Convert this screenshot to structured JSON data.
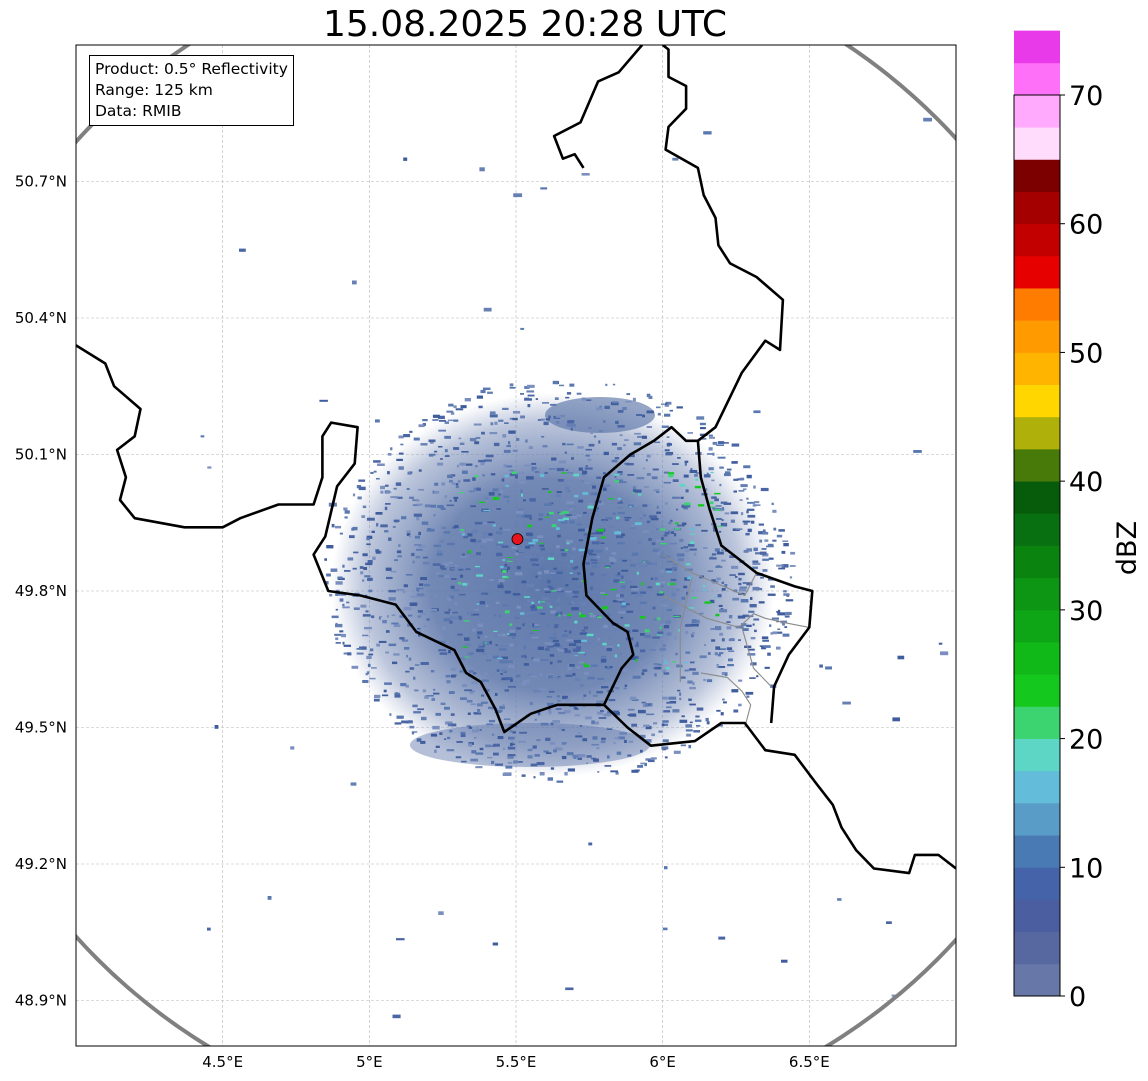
{
  "title": "15.08.2025 20:28 UTC",
  "info": {
    "product": "Product: 0.5° Reflectivity",
    "range": "Range: 125 km",
    "data": "Data: RMIB"
  },
  "map": {
    "lon_range": [
      4.0,
      7.0
    ],
    "lat_range": [
      48.8,
      51.0
    ],
    "lon_ticks": [
      {
        "value": 4.5,
        "label": "4.5°E"
      },
      {
        "value": 5.0,
        "label": "5°E"
      },
      {
        "value": 5.5,
        "label": "5.5°E"
      },
      {
        "value": 6.0,
        "label": "6°E"
      },
      {
        "value": 6.5,
        "label": "6.5°E"
      }
    ],
    "lat_ticks": [
      {
        "value": 50.7,
        "label": "50.7°N"
      },
      {
        "value": 50.4,
        "label": "50.4°N"
      },
      {
        "value": 50.1,
        "label": "50.1°N"
      },
      {
        "value": 49.8,
        "label": "49.8°N"
      },
      {
        "value": 49.5,
        "label": "49.5°N"
      },
      {
        "value": 49.2,
        "label": "49.2°N"
      },
      {
        "value": 48.9,
        "label": "48.9°N"
      }
    ],
    "gridlines": true,
    "radar_site": {
      "lon": 5.505,
      "lat": 49.914,
      "color": "#e8141c"
    },
    "range_ring_color": "#808080",
    "border_color": "#000000",
    "region_border_color": "#8a8a8a",
    "echo_base_color": "#5870a8",
    "borders": [
      [
        [
          4.0,
          50.34
        ],
        [
          4.1,
          50.3
        ],
        [
          4.13,
          50.25
        ],
        [
          4.22,
          50.2
        ],
        [
          4.2,
          50.14
        ],
        [
          4.14,
          50.11
        ],
        [
          4.17,
          50.05
        ],
        [
          4.15,
          50.0
        ],
        [
          4.2,
          49.96
        ],
        [
          4.37,
          49.94
        ],
        [
          4.5,
          49.94
        ],
        [
          4.56,
          49.96
        ],
        [
          4.69,
          49.99
        ],
        [
          4.81,
          49.99
        ],
        [
          4.84,
          50.05
        ],
        [
          4.84,
          50.14
        ],
        [
          4.87,
          50.17
        ],
        [
          4.96,
          50.16
        ],
        [
          4.95,
          50.08
        ],
        [
          4.89,
          50.03
        ],
        [
          4.85,
          49.92
        ],
        [
          4.81,
          49.88
        ],
        [
          4.86,
          49.8
        ],
        [
          4.97,
          49.79
        ],
        [
          5.09,
          49.77
        ],
        [
          5.16,
          49.71
        ],
        [
          5.29,
          49.67
        ],
        [
          5.33,
          49.62
        ],
        [
          5.38,
          49.6
        ],
        [
          5.43,
          49.54
        ],
        [
          5.46,
          49.49
        ],
        [
          5.55,
          49.53
        ],
        [
          5.64,
          49.55
        ],
        [
          5.8,
          49.55
        ],
        [
          5.88,
          49.5
        ],
        [
          5.96,
          49.46
        ],
        [
          6.11,
          49.47
        ],
        [
          6.2,
          49.51
        ],
        [
          6.28,
          49.51
        ],
        [
          6.35,
          49.45
        ],
        [
          6.45,
          49.44
        ],
        [
          6.52,
          49.38
        ],
        [
          6.58,
          49.33
        ],
        [
          6.61,
          49.28
        ],
        [
          6.66,
          49.23
        ],
        [
          6.72,
          49.19
        ],
        [
          6.84,
          49.18
        ],
        [
          6.86,
          49.22
        ],
        [
          6.94,
          49.22
        ],
        [
          7.0,
          49.19
        ]
      ],
      [
        [
          5.8,
          49.55
        ],
        [
          5.86,
          49.63
        ],
        [
          5.9,
          49.66
        ],
        [
          5.88,
          49.71
        ],
        [
          5.83,
          49.73
        ],
        [
          5.74,
          49.79
        ],
        [
          5.73,
          49.86
        ],
        [
          5.76,
          49.96
        ],
        [
          5.8,
          50.05
        ],
        [
          5.89,
          50.1
        ],
        [
          5.97,
          50.13
        ],
        [
          6.03,
          50.16
        ],
        [
          6.08,
          50.13
        ],
        [
          6.12,
          50.13
        ],
        [
          6.13,
          50.05
        ],
        [
          6.16,
          49.98
        ],
        [
          6.2,
          49.9
        ],
        [
          6.32,
          49.84
        ],
        [
          6.45,
          49.81
        ],
        [
          6.51,
          49.8
        ],
        [
          6.5,
          49.72
        ],
        [
          6.43,
          49.66
        ],
        [
          6.38,
          49.59
        ],
        [
          6.37,
          49.51
        ]
      ],
      [
        [
          6.12,
          50.13
        ],
        [
          6.18,
          50.16
        ],
        [
          6.27,
          50.28
        ],
        [
          6.35,
          50.35
        ],
        [
          6.4,
          50.33
        ],
        [
          6.41,
          50.44
        ],
        [
          6.32,
          50.49
        ],
        [
          6.23,
          50.52
        ],
        [
          6.19,
          50.56
        ],
        [
          6.18,
          50.62
        ],
        [
          6.14,
          50.67
        ],
        [
          6.12,
          50.73
        ],
        [
          6.01,
          50.77
        ],
        [
          6.02,
          50.82
        ],
        [
          6.08,
          50.86
        ],
        [
          6.08,
          50.91
        ],
        [
          6.02,
          50.93
        ],
        [
          6.02,
          50.99
        ],
        [
          6.0,
          51.0
        ]
      ],
      [
        [
          5.93,
          51.0
        ],
        [
          5.85,
          50.94
        ],
        [
          5.78,
          50.92
        ],
        [
          5.72,
          50.83
        ],
        [
          5.63,
          50.8
        ],
        [
          5.66,
          50.75
        ],
        [
          5.7,
          50.76
        ],
        [
          5.73,
          50.73
        ]
      ]
    ],
    "region_borders": [
      [
        [
          6.0,
          49.88
        ],
        [
          6.1,
          49.84
        ],
        [
          6.28,
          49.79
        ],
        [
          6.32,
          49.84
        ]
      ],
      [
        [
          6.0,
          49.79
        ],
        [
          6.15,
          49.74
        ],
        [
          6.26,
          49.72
        ],
        [
          6.31,
          49.75
        ],
        [
          6.35,
          49.74
        ],
        [
          6.42,
          49.73
        ],
        [
          6.5,
          49.72
        ]
      ],
      [
        [
          6.27,
          49.72
        ],
        [
          6.31,
          49.63
        ],
        [
          6.37,
          49.59
        ]
      ],
      [
        [
          6.13,
          49.62
        ],
        [
          6.22,
          49.61
        ],
        [
          6.27,
          49.58
        ],
        [
          6.3,
          49.55
        ],
        [
          6.28,
          49.5
        ]
      ],
      [
        [
          6.1,
          49.83
        ],
        [
          6.06,
          49.72
        ],
        [
          6.06,
          49.6
        ]
      ]
    ]
  },
  "colorbar": {
    "label": "dBZ",
    "min": 0,
    "max": 70,
    "step": 2.5,
    "tick_labels": [
      "70",
      "60",
      "50",
      "40",
      "30",
      "20",
      "10",
      "0"
    ],
    "colors": [
      "#6777a8",
      "#5768a0",
      "#4b5fa0",
      "#4463a8",
      "#4a7ab4",
      "#5a9cc8",
      "#62bcda",
      "#5ed6c6",
      "#3cd470",
      "#14c81e",
      "#10b818",
      "#0ea616",
      "#0c9614",
      "#0a840e",
      "#087010",
      "#065c0a",
      "#487a0a",
      "#afb00a",
      "#ffd600",
      "#ffb400",
      "#ff9a00",
      "#ff7c00",
      "#e60000",
      "#c20000",
      "#a40000",
      "#7c0000",
      "#ffdcfc",
      "#ffaafc",
      "#ff70f8",
      "#e83ae8"
    ]
  }
}
